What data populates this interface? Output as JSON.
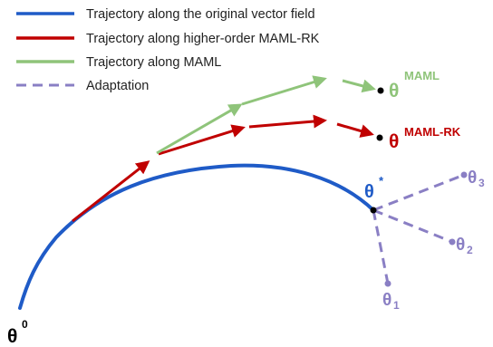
{
  "legend": [
    {
      "label": "Trajectory along the original vector field",
      "color": "#1f5bc7",
      "style": "solid"
    },
    {
      "label": "Trajectory along higher-order MAML-RK",
      "color": "#c00000",
      "style": "solid"
    },
    {
      "label": "Trajectory along MAML",
      "color": "#8fc47a",
      "style": "solid"
    },
    {
      "label": "Adaptation",
      "color": "#8a7fc4",
      "style": "dashed"
    }
  ],
  "labels": {
    "theta0": {
      "symbol": "θ",
      "sup": "0"
    },
    "theta_star": {
      "symbol": "θ",
      "sup": "*"
    },
    "theta_maml": {
      "symbol": "θ",
      "sup": "MAML"
    },
    "theta_mamlrk": {
      "symbol": "θ",
      "sup": "MAML-RK"
    },
    "theta1": {
      "symbol": "θ",
      "sub": "1"
    },
    "theta2": {
      "symbol": "θ",
      "sub": "2"
    },
    "theta3": {
      "symbol": "θ",
      "sub": "3"
    }
  },
  "colors": {
    "blue": "#1f5bc7",
    "red": "#c00000",
    "green": "#8fc47a",
    "purple": "#8a7fc4",
    "black": "#000000"
  }
}
